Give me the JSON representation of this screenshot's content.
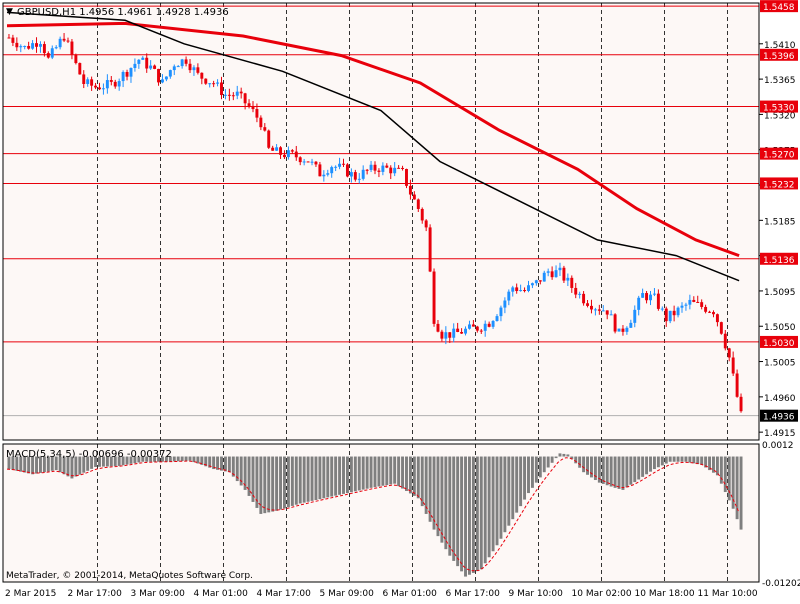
{
  "window": {
    "title_marker": "▼",
    "symbol_line": "GBPUSD,H1  1.4956 1.4961 1.4928 1.4936",
    "copyright": "MetaTrader, © 2001-2014, MetaQuotes Software Corp."
  },
  "colors": {
    "background": "#fdf8f6",
    "grid": "#000000",
    "bull_candle": "#1e90ff",
    "bear_candle": "#e8000b",
    "sma_slow": "#e8000b",
    "sma_fast": "#000000",
    "level_line": "#e8000b",
    "macd_hist": "#7f7f7f",
    "macd_signal": "#e8000b"
  },
  "chart_data": {
    "type": "candlestick",
    "symbol": "GBPUSD",
    "timeframe": "H1",
    "ohlc_header": {
      "open": 1.4956,
      "high": 1.4961,
      "low": 1.4928,
      "close": 1.4936
    },
    "ylim": [
      1.4905,
      1.5462
    ],
    "y_ticks": [
      1.541,
      1.5365,
      1.532,
      1.5275,
      1.523,
      1.5185,
      1.514,
      1.5095,
      1.505,
      1.5005,
      1.496,
      1.4915
    ],
    "x_labels": [
      "2 Mar 2015",
      "2 Mar 17:00",
      "3 Mar 09:00",
      "4 Mar 01:00",
      "4 Mar 17:00",
      "5 Mar 09:00",
      "6 Mar 01:00",
      "6 Mar 17:00",
      "9 Mar 10:00",
      "10 Mar 02:00",
      "10 Mar 18:00",
      "11 Mar 10:00"
    ],
    "levels": [
      1.5458,
      1.5396,
      1.533,
      1.527,
      1.5232,
      1.5136,
      1.503
    ],
    "current_price": 1.4936,
    "close_path": [
      [
        0,
        1.5418
      ],
      [
        4,
        1.5405
      ],
      [
        8,
        1.5415
      ],
      [
        10,
        1.539
      ],
      [
        14,
        1.542
      ],
      [
        16,
        1.5395
      ],
      [
        19,
        1.536
      ],
      [
        22,
        1.5355
      ],
      [
        26,
        1.5358
      ],
      [
        30,
        1.5375
      ],
      [
        33,
        1.539
      ],
      [
        36,
        1.538
      ],
      [
        39,
        1.536
      ],
      [
        42,
        1.5385
      ],
      [
        45,
        1.539
      ],
      [
        48,
        1.537
      ],
      [
        52,
        1.536
      ],
      [
        55,
        1.5345
      ],
      [
        58,
        1.5345
      ],
      [
        61,
        1.533
      ],
      [
        64,
        1.531
      ],
      [
        66,
        1.5275
      ],
      [
        69,
        1.527
      ],
      [
        72,
        1.5268
      ],
      [
        76,
        1.5262
      ],
      [
        79,
        1.5245
      ],
      [
        82,
        1.5255
      ],
      [
        85,
        1.525
      ],
      [
        88,
        1.524
      ],
      [
        91,
        1.5248
      ],
      [
        94,
        1.5252
      ],
      [
        97,
        1.525
      ],
      [
        100,
        1.5245
      ],
      [
        102,
        1.522
      ],
      [
        104,
        1.52
      ],
      [
        106,
        1.5175
      ],
      [
        108,
        1.506
      ],
      [
        110,
        1.504
      ],
      [
        113,
        1.504
      ],
      [
        116,
        1.5045
      ],
      [
        119,
        1.5048
      ],
      [
        122,
        1.5055
      ],
      [
        125,
        1.5075
      ],
      [
        128,
        1.51
      ],
      [
        131,
        1.5095
      ],
      [
        134,
        1.5105
      ],
      [
        137,
        1.512
      ],
      [
        140,
        1.5118
      ],
      [
        143,
        1.51
      ],
      [
        146,
        1.5085
      ],
      [
        149,
        1.5075
      ],
      [
        152,
        1.507
      ],
      [
        155,
        1.504
      ],
      [
        158,
        1.506
      ],
      [
        161,
        1.509
      ],
      [
        164,
        1.5085
      ],
      [
        167,
        1.506
      ],
      [
        170,
        1.507
      ],
      [
        173,
        1.508
      ],
      [
        176,
        1.5075
      ],
      [
        179,
        1.507
      ],
      [
        181,
        1.5045
      ],
      [
        183,
        1.501
      ],
      [
        185,
        1.496
      ],
      [
        186,
        1.4936
      ]
    ],
    "sma_slow": [
      [
        0,
        1.5433
      ],
      [
        30,
        1.5436
      ],
      [
        60,
        1.542
      ],
      [
        85,
        1.5395
      ],
      [
        105,
        1.536
      ],
      [
        125,
        1.53
      ],
      [
        145,
        1.525
      ],
      [
        160,
        1.52
      ],
      [
        175,
        1.516
      ],
      [
        186,
        1.514
      ]
    ],
    "sma_fast": [
      [
        0,
        1.545
      ],
      [
        30,
        1.544
      ],
      [
        45,
        1.541
      ],
      [
        70,
        1.5375
      ],
      [
        95,
        1.5325
      ],
      [
        110,
        1.526
      ],
      [
        130,
        1.521
      ],
      [
        150,
        1.516
      ],
      [
        170,
        1.514
      ],
      [
        186,
        1.5108
      ]
    ],
    "macd": {
      "label": "MACD(5,34,5) -0.00696 -0.00372",
      "params": [
        5,
        34,
        5
      ],
      "value": -0.00696,
      "signal": -0.00372,
      "ylim": [
        -0.01202,
        0.0012
      ],
      "y_ticks": [
        0.0012,
        -0.01202
      ],
      "hist_path": [
        [
          0,
          -0.0012
        ],
        [
          6,
          -0.0017
        ],
        [
          12,
          -0.0013
        ],
        [
          16,
          -0.0021
        ],
        [
          22,
          -0.001
        ],
        [
          28,
          -0.0009
        ],
        [
          34,
          -0.0005
        ],
        [
          40,
          -0.0005
        ],
        [
          46,
          -0.0004
        ],
        [
          52,
          -0.0012
        ],
        [
          56,
          -0.0015
        ],
        [
          60,
          -0.0032
        ],
        [
          64,
          -0.0055
        ],
        [
          68,
          -0.0052
        ],
        [
          74,
          -0.0045
        ],
        [
          80,
          -0.004
        ],
        [
          86,
          -0.0035
        ],
        [
          92,
          -0.003
        ],
        [
          98,
          -0.0026
        ],
        [
          104,
          -0.004
        ],
        [
          108,
          -0.007
        ],
        [
          112,
          -0.0095
        ],
        [
          116,
          -0.0115
        ],
        [
          120,
          -0.0108
        ],
        [
          124,
          -0.0085
        ],
        [
          128,
          -0.006
        ],
        [
          132,
          -0.0035
        ],
        [
          136,
          -0.0015
        ],
        [
          140,
          0.0003
        ],
        [
          142,
          0.0002
        ],
        [
          146,
          -0.0015
        ],
        [
          150,
          -0.0025
        ],
        [
          154,
          -0.003
        ],
        [
          156,
          -0.0032
        ],
        [
          160,
          -0.0022
        ],
        [
          164,
          -0.0012
        ],
        [
          168,
          -0.0005
        ],
        [
          172,
          -0.0005
        ],
        [
          176,
          -0.0008
        ],
        [
          180,
          -0.0018
        ],
        [
          184,
          -0.005
        ],
        [
          186,
          -0.007
        ]
      ]
    }
  }
}
